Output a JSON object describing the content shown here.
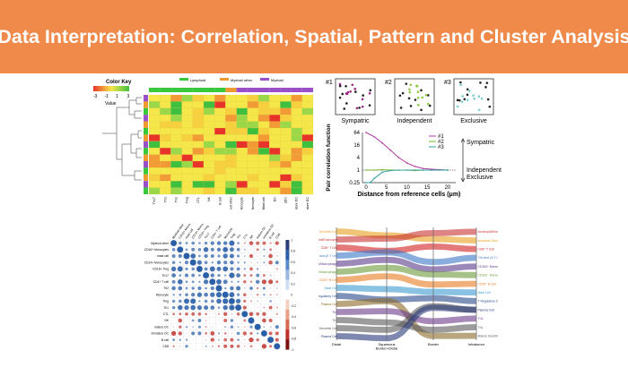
{
  "slide": {
    "title": "Data Interpretation: Correlation, Spatial, Pattern and Cluster Analysis",
    "banner_color": "#ef8a4a"
  },
  "heatmap": {
    "color_key_title": "Color Key",
    "color_key_ticks": [
      "-3",
      "-1",
      "1",
      "3"
    ],
    "color_key_label": "Value",
    "group_legend": [
      {
        "label": "Lymphoid",
        "color": "#38c83a"
      },
      {
        "label": "Myeloid other",
        "color": "#ef9a2e"
      },
      {
        "label": "Myeloid",
        "color": "#9a4fc8"
      }
    ],
    "column_labels": [
      "Th17",
      "Th1",
      "Th2",
      "Treg",
      "CTL",
      "NK",
      "B cell",
      "Myeloid other",
      "CD16+ Monocyte",
      "CD14+ Monocyte",
      "Mast cell",
      "DC",
      "pDC",
      "mature DC",
      "immature DC"
    ],
    "colors": {
      "low": "#e8332a",
      "mid": "#f5e74a",
      "high": "#3fbf3f"
    }
  },
  "spatial": {
    "panels": [
      {
        "label": "#1",
        "caption": "Sympatric"
      },
      {
        "label": "#2",
        "caption": "Independent"
      },
      {
        "label": "#3",
        "caption": "Exclusive"
      }
    ],
    "y_axis_title": "Pair correlation function",
    "x_axis_title": "Distance from reference cells (μm)",
    "y_ticks": [
      "64",
      "16",
      "4",
      "1",
      "0.25"
    ],
    "x_ticks": [
      "0",
      "5",
      "10",
      "15",
      "20"
    ],
    "legend": [
      "#1",
      "#2",
      "#3"
    ],
    "annotations": [
      "Sympatric",
      "Independent",
      "Exclusive"
    ],
    "series_colors": [
      "#b03aa0",
      "#7ab82e",
      "#2fa0a0"
    ]
  },
  "corrplot": {
    "labels": [
      "Myeloid other",
      "CD16+ Monocytes",
      "mast cell",
      "CD14+ Monocytes",
      "CD16+ Treg",
      "Th17",
      "CD4+ T cell",
      "Th2",
      "Monocyte",
      "Treg",
      "Th1",
      "CTL",
      "NK",
      "mature DC",
      "immature DC",
      "B cell",
      "CD8"
    ],
    "scale_ticks": [
      "1",
      "0.8",
      "0.6",
      "0.4",
      "0.2",
      "0",
      "-0.2",
      "-0.4",
      "-0.6",
      "-0.8",
      "-1"
    ],
    "colors": {
      "pos": "#2a5fa8",
      "neg": "#c0302a"
    }
  },
  "alluvial": {
    "left_labels": [
      {
        "text": "Immature Dendritic Cell",
        "color": "#e8a020"
      },
      {
        "text": "Neutrophil/Eosinophil",
        "color": "#c83232"
      },
      {
        "text": "CD8⁺ T Cell",
        "color": "#d02020"
      },
      {
        "text": "Th0 and γδ T Cell",
        "color": "#3a78c8"
      },
      {
        "text": "CD163⁺ Monocyte/Macrophage",
        "color": "#5a3a8a"
      },
      {
        "text": "CD163⁻ Monocyte/Macrophage",
        "color": "#6a9a3a"
      },
      {
        "text": "CD20⁺ B Cell",
        "color": "#e87a20"
      },
      {
        "text": "Mast Cell",
        "color": "#3a9ad0"
      },
      {
        "text": "T Regulatory Cell",
        "color": "#2a4a8a"
      },
      {
        "text": "Plasma Cell",
        "color": "#8a6a2a"
      },
      {
        "text": "Th2",
        "color": "#6a3a8a"
      },
      {
        "text": "Th1",
        "color": "#5a5a5a"
      },
      {
        "text": "Mature Dendritic Cell",
        "color": "#5a5a5a"
      },
      {
        "text": "Plasma Cell",
        "color": "#2a3a7a"
      }
    ],
    "right_labels": [
      {
        "text": "Neutrophil/Eosinophil",
        "color": "#c83232"
      },
      {
        "text": "Immature Dendritic Cell",
        "color": "#e8a020"
      },
      {
        "text": "CD8⁺ T Cell",
        "color": "#d02020"
      },
      {
        "text": "Th0 and γδ T Cell",
        "color": "#3a78c8"
      },
      {
        "text": "CD163⁺ Monocyte/Macro",
        "color": "#5a3a8a"
      },
      {
        "text": "CD163⁻ Monocyte/Macro",
        "color": "#6a9a3a"
      },
      {
        "text": "CD20⁺ B Cell",
        "color": "#e87a20"
      },
      {
        "text": "Mast Cell",
        "color": "#3a9ad0"
      },
      {
        "text": "T Regulatory Cell",
        "color": "#2a4a8a"
      },
      {
        "text": "Plasma Cell",
        "color": "#2a3a7a"
      },
      {
        "text": "Th2",
        "color": "#6a3a8a"
      },
      {
        "text": "Th1",
        "color": "#5a5a5a"
      },
      {
        "text": "Mature Dendritic Cell",
        "color": "#5a5a5a"
      }
    ],
    "axis_labels": [
      "Distal",
      "Squamous Border+Distal",
      "Border",
      "Intratumor"
    ]
  }
}
